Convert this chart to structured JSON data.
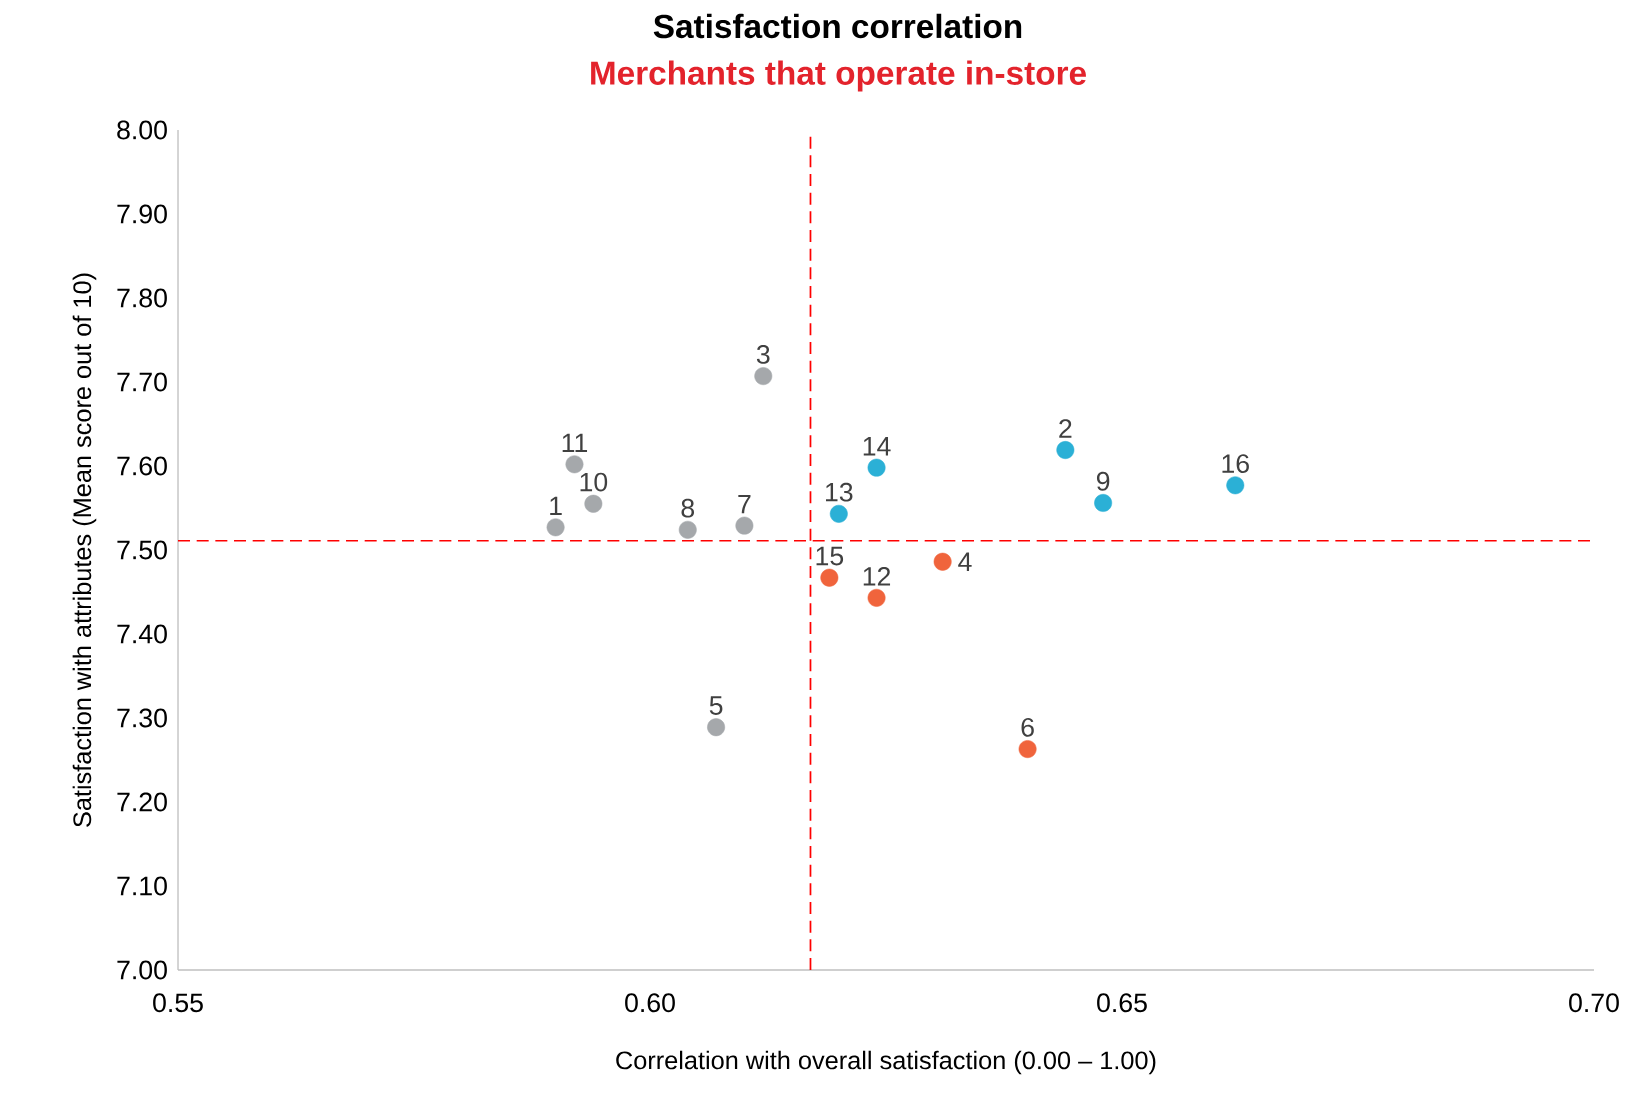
{
  "chart_data": {
    "type": "scatter",
    "title": "Satisfaction correlation",
    "subtitle": "Merchants that operate in-store",
    "xlabel": "Correlation with overall satisfaction (0.00 – 1.00)",
    "ylabel": "Satisfaction with attributes (Mean score out of 10)",
    "xlim": [
      0.55,
      0.7
    ],
    "ylim": [
      7.0,
      8.0
    ],
    "xticks": [
      0.55,
      {
        "value": 0.6,
        "label": "0.60"
      },
      0.65,
      {
        "value": 0.7,
        "label": "0.70"
      }
    ],
    "yticks": [
      {
        "value": 7.0,
        "label": "7.00"
      },
      {
        "value": 7.1,
        "label": "7.10"
      },
      {
        "value": 7.2,
        "label": "7.20"
      },
      {
        "value": 7.3,
        "label": "7.30"
      },
      {
        "value": 7.4,
        "label": "7.40"
      },
      {
        "value": 7.5,
        "label": "7.50"
      },
      {
        "value": 7.6,
        "label": "7.60"
      },
      {
        "value": 7.7,
        "label": "7.70"
      },
      {
        "value": 7.8,
        "label": "7.80"
      },
      {
        "value": 7.9,
        "label": "7.90"
      },
      {
        "value": 8.0,
        "label": "8.00"
      }
    ],
    "grid": false,
    "series": [
      {
        "color": "#a5a8ab",
        "x": [
          0.59,
          0.612,
          0.607,
          0.604,
          0.61,
          0.594,
          0.592
        ],
        "values": [
          7.527,
          7.707,
          7.289,
          7.524,
          7.529,
          7.555,
          7.602
        ]
      },
      {
        "color": "#2bb0d6",
        "x": [
          0.644,
          0.648,
          0.62,
          0.624,
          0.662
        ],
        "values": [
          7.619,
          7.556,
          7.543,
          7.598,
          7.577
        ]
      },
      {
        "color": "#f0643c",
        "x": [
          0.631,
          0.64,
          0.624,
          0.619
        ],
        "values": [
          7.486,
          7.263,
          7.443,
          7.467
        ]
      }
    ],
    "ref_lines": [
      {
        "axis": "x",
        "value": 0.617,
        "color": "#ff0000",
        "line_style": "dashed"
      },
      {
        "axis": "y",
        "value": 7.511,
        "color": "#ff0000",
        "line_style": "dashed"
      }
    ],
    "annotations": [
      {
        "text": "1",
        "x": 0.59,
        "y": 7.527
      },
      {
        "text": "2",
        "x": 0.644,
        "y": 7.619
      },
      {
        "text": "3",
        "x": 0.612,
        "y": 7.707
      },
      {
        "text": "4",
        "x": 0.631,
        "y": 7.486
      },
      {
        "text": "5",
        "x": 0.607,
        "y": 7.289
      },
      {
        "text": "6",
        "x": 0.64,
        "y": 7.263
      },
      {
        "text": "7",
        "x": 0.61,
        "y": 7.529
      },
      {
        "text": "8",
        "x": 0.604,
        "y": 7.524
      },
      {
        "text": "9",
        "x": 0.648,
        "y": 7.556
      },
      {
        "text": "10",
        "x": 0.594,
        "y": 7.555
      },
      {
        "text": "11",
        "x": 0.592,
        "y": 7.602
      },
      {
        "text": "12",
        "x": 0.624,
        "y": 7.443
      },
      {
        "text": "13",
        "x": 0.62,
        "y": 7.543
      },
      {
        "text": "14",
        "x": 0.624,
        "y": 7.598
      },
      {
        "text": "15",
        "x": 0.619,
        "y": 7.467
      },
      {
        "text": "16",
        "x": 0.662,
        "y": 7.577
      }
    ]
  }
}
